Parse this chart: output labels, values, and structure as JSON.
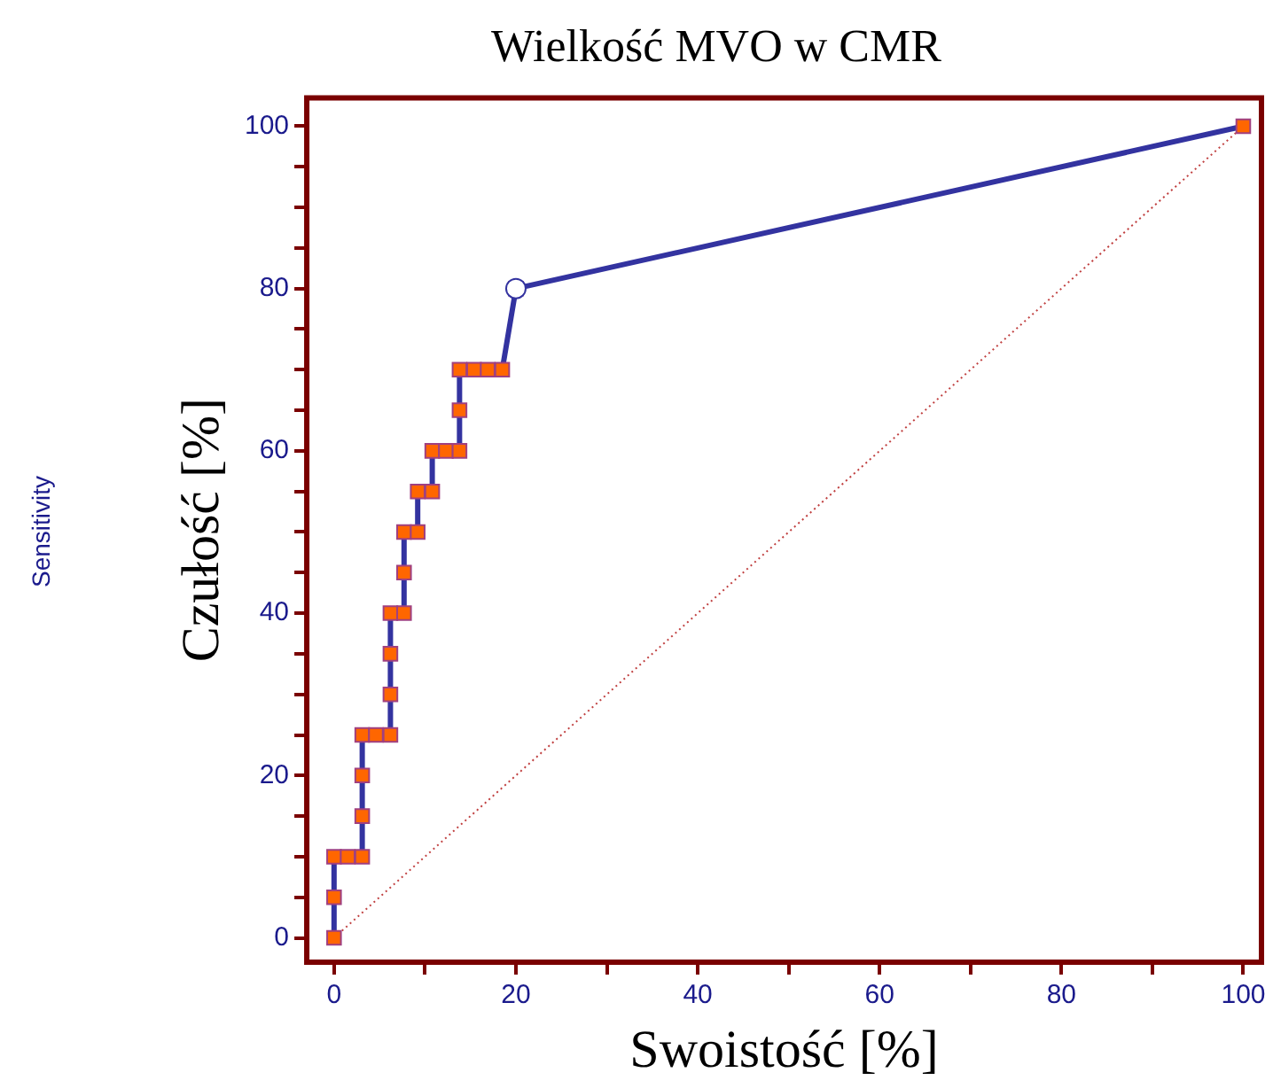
{
  "chart_data": {
    "type": "line",
    "title": "Wielkość MVO w CMR",
    "xlabel": "Swoistość [%]",
    "ylabel": "Czułość [%]",
    "annotations": [
      "Sensitivity"
    ],
    "xlim": [
      -3,
      102
    ],
    "ylim": [
      -3,
      103.5
    ],
    "xticks": [
      0,
      {
        "value": 10,
        "label": null
      },
      20,
      {
        "value": 30,
        "label": null
      },
      40,
      {
        "value": 50,
        "label": null
      },
      60,
      {
        "value": 70,
        "label": null
      },
      80,
      {
        "value": 90,
        "label": null
      },
      100
    ],
    "yticks": [
      0,
      {
        "value": 5,
        "label": null
      },
      {
        "value": 10,
        "label": null
      },
      {
        "value": 15,
        "label": null
      },
      20,
      {
        "value": 25,
        "label": null
      },
      {
        "value": 30,
        "label": null
      },
      {
        "value": 35,
        "label": null
      },
      40,
      {
        "value": 45,
        "label": null
      },
      {
        "value": 50,
        "label": null
      },
      {
        "value": 55,
        "label": null
      },
      60,
      {
        "value": 65,
        "label": null
      },
      {
        "value": 70,
        "label": null
      },
      {
        "value": 75,
        "label": null
      },
      80,
      {
        "value": 85,
        "label": null
      },
      {
        "value": 90,
        "label": null
      },
      {
        "value": 95,
        "label": null
      },
      100
    ],
    "grid": false,
    "legend": false,
    "series": [
      {
        "color": "#3333a0",
        "marker": "square",
        "line_style": "solid",
        "x": [
          0,
          0,
          0,
          1.5,
          3.1,
          3.1,
          3.1,
          3.1,
          4.6,
          6.2,
          6.2,
          6.2,
          6.2,
          7.7,
          7.7,
          7.7,
          9.2,
          9.2,
          10.8,
          10.8,
          12.3,
          13.8,
          13.8,
          13.8,
          15.4,
          16.9,
          18.5,
          20,
          100
        ],
        "values": [
          0,
          5,
          10,
          10,
          10,
          15,
          20,
          25,
          25,
          25,
          30,
          35,
          40,
          40,
          45,
          50,
          50,
          55,
          55,
          60,
          60,
          60,
          65,
          70,
          70,
          70,
          70,
          80,
          100
        ]
      },
      {
        "type": "scatter",
        "color": "#ffffff",
        "marker": "circle",
        "x": [
          20
        ],
        "values": [
          80
        ]
      },
      {
        "color": "#c04040",
        "marker": "none",
        "line_style": "dotted",
        "x": [
          0,
          100
        ],
        "values": [
          0,
          100
        ]
      }
    ]
  }
}
